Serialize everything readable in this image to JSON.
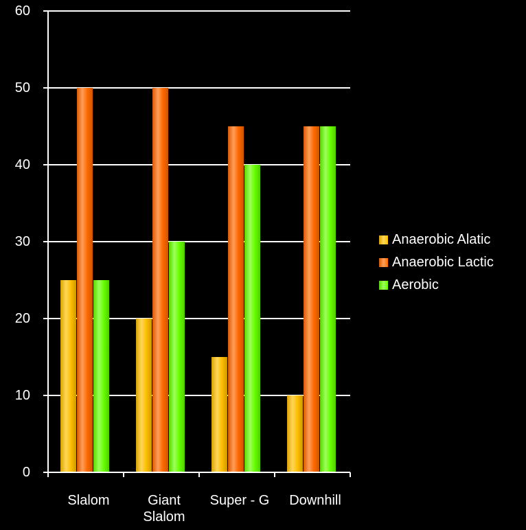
{
  "chart_data": {
    "type": "bar",
    "categories": [
      [
        "Slalom"
      ],
      [
        "Giant",
        "Slalom"
      ],
      [
        "Super - G"
      ],
      [
        "Downhill"
      ]
    ],
    "series": [
      {
        "name": "Anaerobic Alatic",
        "values": [
          25,
          20,
          15,
          10
        ],
        "color": "#FFC000"
      },
      {
        "name": "Anaerobic Lactic",
        "values": [
          50,
          50,
          45,
          45
        ],
        "color": "#FF6A00"
      },
      {
        "name": "Aerobic",
        "values": [
          25,
          30,
          40,
          45
        ],
        "color": "#66FF00"
      }
    ],
    "yticks": [
      "0",
      "10",
      "20",
      "30",
      "40",
      "50",
      "60"
    ],
    "ylim": [
      0,
      60
    ],
    "grid": true,
    "legend_position": "right"
  }
}
